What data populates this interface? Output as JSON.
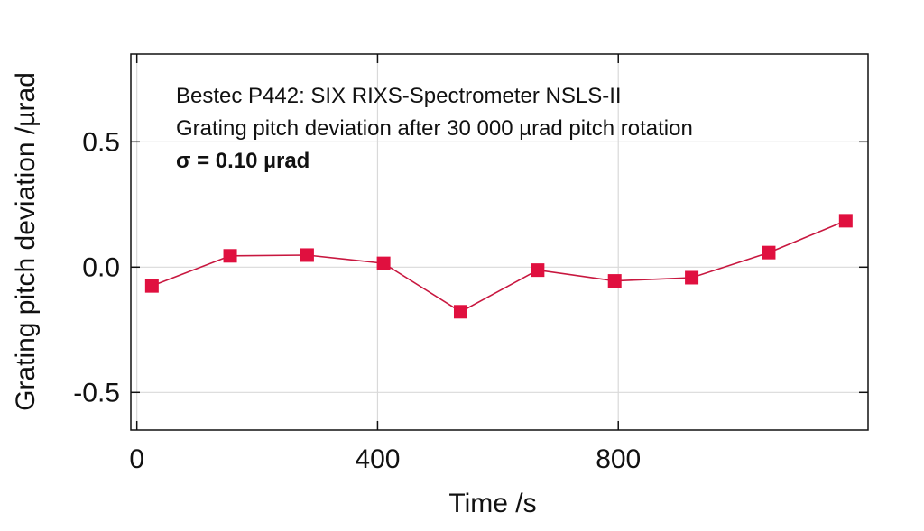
{
  "chart_data": {
    "type": "line",
    "xlabel": "Time /s",
    "ylabel": "Grating pitch deviation /µrad",
    "xlim": [
      -10,
      1215
    ],
    "ylim": [
      -0.65,
      0.85
    ],
    "x_ticks": [
      0,
      400,
      800
    ],
    "x_tick_labels": [
      "0",
      "400",
      "800"
    ],
    "y_ticks": [
      -0.5,
      0.0,
      0.5
    ],
    "y_tick_labels": [
      "-0.5",
      "0.0",
      "0.5"
    ],
    "grid": true,
    "marker_color": "#e0103f",
    "line_color": "#c8173f",
    "annotations": [
      "Bestec P442: SIX RIXS-Spectrometer NSLS-II",
      "Grating pitch deviation after 30 000 µrad pitch rotation",
      "σ  = 0.10 µrad"
    ],
    "series": [
      {
        "x": [
          25,
          155,
          283,
          410,
          538,
          666,
          794,
          922,
          1050,
          1178
        ],
        "y": [
          -0.075,
          0.045,
          0.048,
          0.015,
          -0.178,
          -0.012,
          -0.055,
          -0.042,
          0.058,
          0.185
        ]
      }
    ]
  }
}
